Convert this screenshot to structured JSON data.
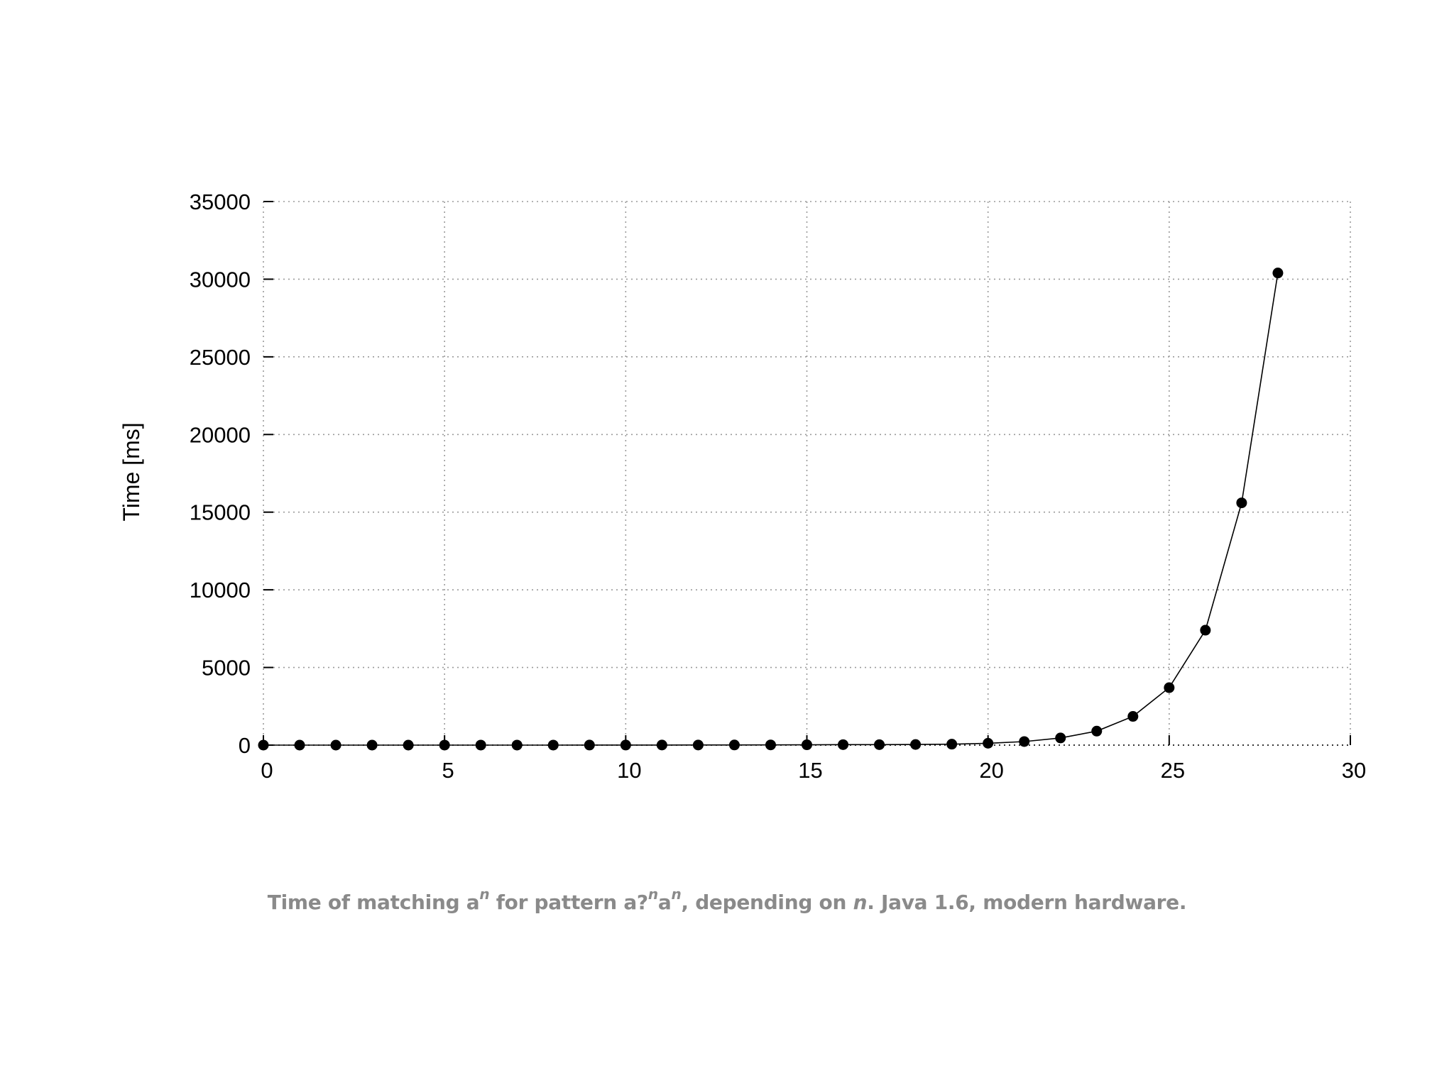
{
  "chart_data": {
    "type": "line",
    "xlabel": "",
    "ylabel": "Time [ms]",
    "xlim": [
      0,
      30
    ],
    "ylim": [
      0,
      35000
    ],
    "xticks": [
      0,
      5,
      10,
      15,
      20,
      25,
      30
    ],
    "yticks": [
      0,
      5000,
      10000,
      15000,
      20000,
      25000,
      30000,
      35000
    ],
    "grid": true,
    "markers": "filled-circle",
    "series": [
      {
        "x": [
          0,
          1,
          2,
          3,
          4,
          5,
          6,
          7,
          8,
          9,
          10,
          11,
          12,
          13,
          14,
          15,
          16,
          17,
          18,
          19,
          20,
          21,
          22,
          23,
          24,
          25,
          26,
          27,
          28
        ],
        "values": [
          0,
          0,
          0,
          0,
          0,
          2,
          2,
          2,
          2,
          4,
          4,
          6,
          8,
          10,
          14,
          20,
          30,
          30,
          40,
          60,
          120,
          230,
          460,
          900,
          1850,
          3700,
          7400,
          15600,
          30400
        ]
      }
    ]
  },
  "caption": {
    "part1": "Time of matching a",
    "sup1": "n",
    "part2": " for pattern a?",
    "sup2": "n",
    "part3": "a",
    "sup3": "n",
    "part4": ", depending on ",
    "italic_n": "n",
    "part5": ". Java 1.6, modern hardware."
  }
}
